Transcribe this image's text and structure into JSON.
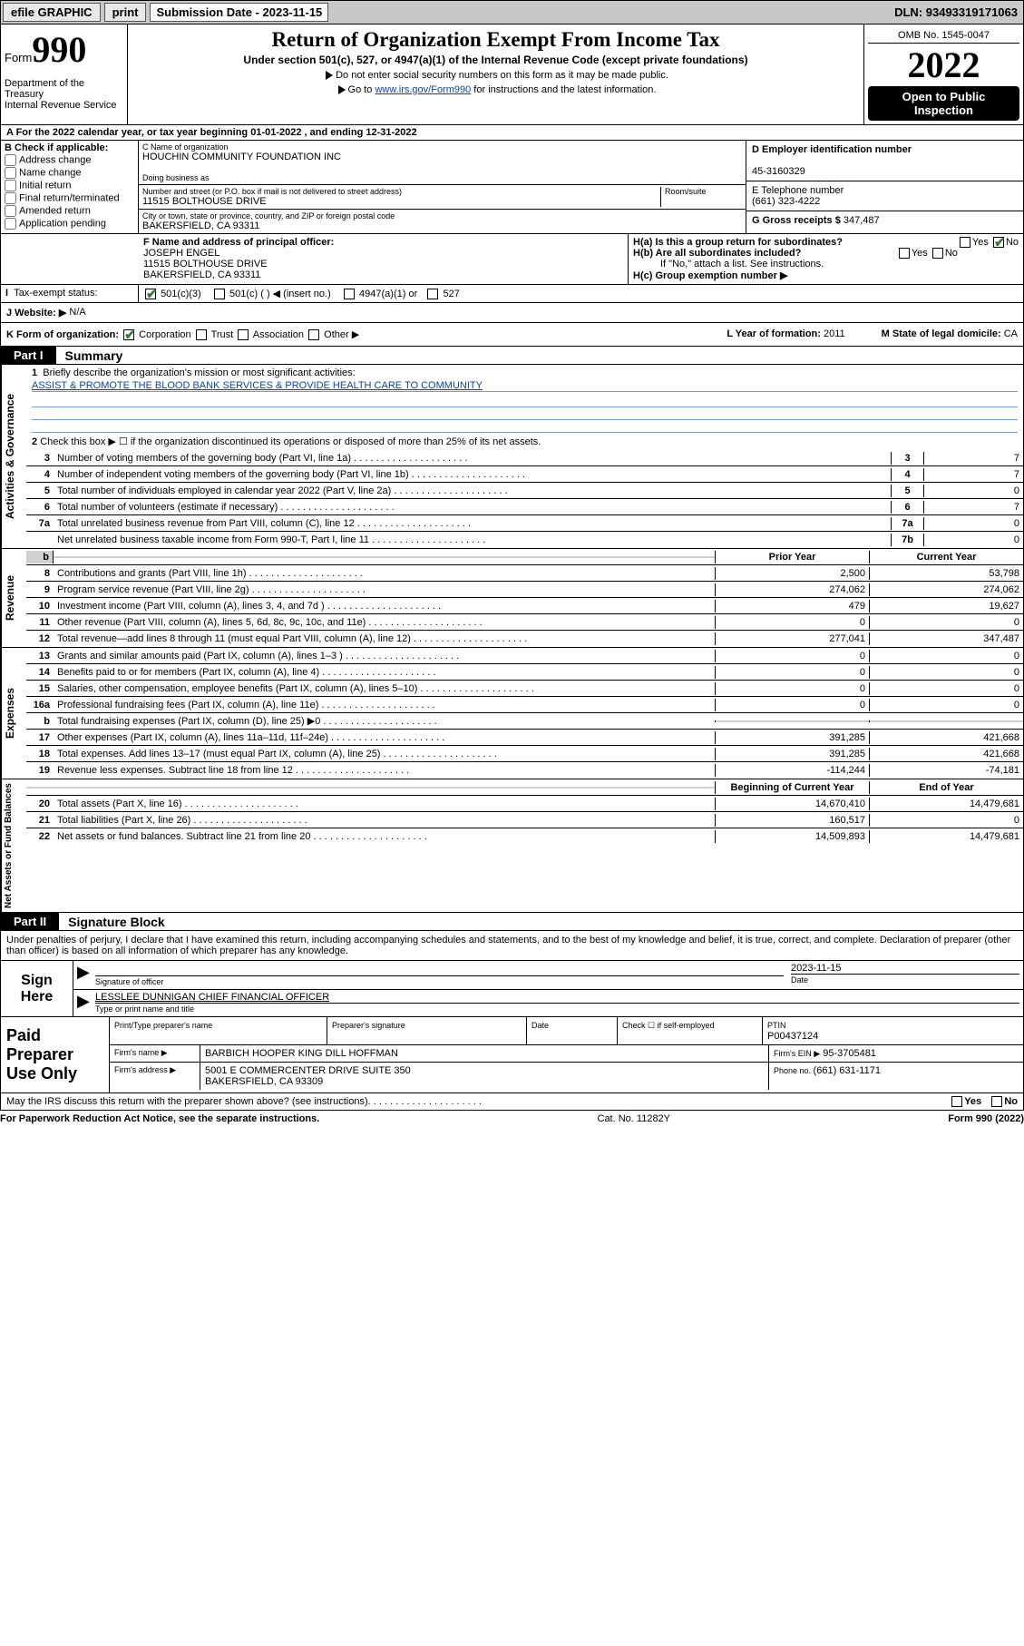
{
  "topbar": {
    "efile": "efile GRAPHIC",
    "print": "print",
    "subdate_lbl": "Submission Date - ",
    "subdate": "2023-11-15",
    "dln_lbl": "DLN: ",
    "dln": "93493319171063"
  },
  "header": {
    "form_word": "Form",
    "form_num": "990",
    "dept": "Department of the Treasury\nInternal Revenue Service",
    "title": "Return of Organization Exempt From Income Tax",
    "sub": "Under section 501(c), 527, or 4947(a)(1) of the Internal Revenue Code (except private foundations)",
    "note1": "Do not enter social security numbers on this form as it may be made public.",
    "note2_pre": "Go to ",
    "note2_link": "www.irs.gov/Form990",
    "note2_post": " for instructions and the latest information.",
    "omb": "OMB No. 1545-0047",
    "year": "2022",
    "open": "Open to Public Inspection"
  },
  "period": {
    "text": "A For the 2022 calendar year, or tax year beginning 01-01-2022        , and ending 12-31-2022"
  },
  "colB": {
    "hdr": "B Check if applicable:",
    "opts": [
      "Address change",
      "Name change",
      "Initial return",
      "Final return/terminated",
      "Amended return",
      "Application pending"
    ]
  },
  "colC": {
    "name_lbl": "C Name of organization",
    "name": "HOUCHIN COMMUNITY FOUNDATION INC",
    "dba_lbl": "Doing business as",
    "dba": "",
    "addr_lbl": "Number and street (or P.O. box if mail is not delivered to street address)",
    "room_lbl": "Room/suite",
    "addr": "11515 BOLTHOUSE DRIVE",
    "city_lbl": "City or town, state or province, country, and ZIP or foreign postal code",
    "city": "BAKERSFIELD, CA  93311"
  },
  "colD": {
    "ein_lbl": "D Employer identification number",
    "ein": "45-3160329",
    "tel_lbl": "E Telephone number",
    "tel": "(661) 323-4222",
    "gross_lbl": "G Gross receipts $",
    "gross": "347,487"
  },
  "rowF": {
    "lbl": "F  Name and address of principal officer:",
    "name": "JOSEPH ENGEL",
    "addr1": "11515 BOLTHOUSE DRIVE",
    "addr2": "BAKERSFIELD, CA  93311"
  },
  "rowH": {
    "a": "H(a)  Is this a group return for subordinates?",
    "b": "H(b)  Are all subordinates included?",
    "note": "If \"No,\" attach a list. See instructions.",
    "c": "H(c)  Group exemption number ▶",
    "yes": "Yes",
    "no": "No"
  },
  "rowI": {
    "lbl": "Tax-exempt status:",
    "o1": "501(c)(3)",
    "o2": "501(c) (  ) ◀ (insert no.)",
    "o3": "4947(a)(1) or",
    "o4": "527"
  },
  "rowJ": {
    "lbl": "J   Website: ▶",
    "val": "N/A"
  },
  "rowK": {
    "lbl": "K Form of organization:",
    "opts": [
      "Corporation",
      "Trust",
      "Association",
      "Other ▶"
    ],
    "yr_lbl": "L Year of formation: ",
    "yr": "2011",
    "st_lbl": "M State of legal domicile: ",
    "st": "CA"
  },
  "part1": {
    "tag": "Part I",
    "title": "Summary"
  },
  "briefly": {
    "num": "1",
    "txt": "Briefly describe the organization's mission or most significant activities:",
    "mission": "ASSIST & PROMOTE THE BLOOD BANK SERVICES & PROVIDE HEALTH CARE TO COMMUNITY"
  },
  "line2txt": "Check this box ▶ ☐  if the organization discontinued its operations or disposed of more than 25% of its net assets.",
  "govlines": [
    {
      "n": "3",
      "t": "Number of voting members of the governing body (Part VI, line 1a)",
      "b": "3",
      "v": "7"
    },
    {
      "n": "4",
      "t": "Number of independent voting members of the governing body (Part VI, line 1b)",
      "b": "4",
      "v": "7"
    },
    {
      "n": "5",
      "t": "Total number of individuals employed in calendar year 2022 (Part V, line 2a)",
      "b": "5",
      "v": "0"
    },
    {
      "n": "6",
      "t": "Total number of volunteers (estimate if necessary)",
      "b": "6",
      "v": "7"
    },
    {
      "n": "7a",
      "t": "Total unrelated business revenue from Part VIII, column (C), line 12",
      "b": "7a",
      "v": "0"
    },
    {
      "n": "",
      "t": "Net unrelated business taxable income from Form 990-T, Part I, line 11",
      "b": "7b",
      "v": "0"
    }
  ],
  "revhdr": {
    "py": "Prior Year",
    "cy": "Current Year"
  },
  "revlines": [
    {
      "n": "8",
      "t": "Contributions and grants (Part VIII, line 1h)",
      "p": "2,500",
      "c": "53,798"
    },
    {
      "n": "9",
      "t": "Program service revenue (Part VIII, line 2g)",
      "p": "274,062",
      "c": "274,062"
    },
    {
      "n": "10",
      "t": "Investment income (Part VIII, column (A), lines 3, 4, and 7d )",
      "p": "479",
      "c": "19,627"
    },
    {
      "n": "11",
      "t": "Other revenue (Part VIII, column (A), lines 5, 6d, 8c, 9c, 10c, and 11e)",
      "p": "0",
      "c": "0"
    },
    {
      "n": "12",
      "t": "Total revenue—add lines 8 through 11 (must equal Part VIII, column (A), line 12)",
      "p": "277,041",
      "c": "347,487"
    }
  ],
  "explines": [
    {
      "n": "13",
      "t": "Grants and similar amounts paid (Part IX, column (A), lines 1–3 )",
      "p": "0",
      "c": "0"
    },
    {
      "n": "14",
      "t": "Benefits paid to or for members (Part IX, column (A), line 4)",
      "p": "0",
      "c": "0"
    },
    {
      "n": "15",
      "t": "Salaries, other compensation, employee benefits (Part IX, column (A), lines 5–10)",
      "p": "0",
      "c": "0"
    },
    {
      "n": "16a",
      "t": "Professional fundraising fees (Part IX, column (A), line 11e)",
      "p": "0",
      "c": "0"
    },
    {
      "n": "b",
      "t": "Total fundraising expenses (Part IX, column (D), line 25) ▶0",
      "p": "",
      "c": "",
      "grey": true
    },
    {
      "n": "17",
      "t": "Other expenses (Part IX, column (A), lines 11a–11d, 11f–24e)",
      "p": "391,285",
      "c": "421,668"
    },
    {
      "n": "18",
      "t": "Total expenses. Add lines 13–17 (must equal Part IX, column (A), line 25)",
      "p": "391,285",
      "c": "421,668"
    },
    {
      "n": "19",
      "t": "Revenue less expenses. Subtract line 18 from line 12",
      "p": "-114,244",
      "c": "-74,181"
    }
  ],
  "nahdr": {
    "b": "Beginning of Current Year",
    "e": "End of Year"
  },
  "nalines": [
    {
      "n": "20",
      "t": "Total assets (Part X, line 16)",
      "p": "14,670,410",
      "c": "14,479,681"
    },
    {
      "n": "21",
      "t": "Total liabilities (Part X, line 26)",
      "p": "160,517",
      "c": "0"
    },
    {
      "n": "22",
      "t": "Net assets or fund balances. Subtract line 21 from line 20",
      "p": "14,509,893",
      "c": "14,479,681"
    }
  ],
  "part2": {
    "tag": "Part II",
    "title": "Signature Block"
  },
  "penalty": "Under penalties of perjury, I declare that I have examined this return, including accompanying schedules and statements, and to the best of my knowledge and belief, it is true, correct, and complete. Declaration of preparer (other than officer) is based on all information of which preparer has any knowledge.",
  "sign": {
    "here": "Sign Here",
    "sig_lbl": "Signature of officer",
    "date_lbl": "Date",
    "date": "2023-11-15",
    "name": "LESSLEE DUNNIGAN  CHIEF FINANCIAL OFFICER",
    "name_lbl": "Type or print name and title"
  },
  "paid": {
    "lbl": "Paid Preparer Use Only",
    "h1": "Print/Type preparer's name",
    "h2": "Preparer's signature",
    "h3": "Date",
    "h4": "Check ☐ if self-employed",
    "h5_lbl": "PTIN",
    "h5": "P00437124",
    "firm_lbl": "Firm's name      ▶",
    "firm": "BARBICH HOOPER KING DILL HOFFMAN",
    "ein_lbl": "Firm's EIN ▶",
    "ein": "95-3705481",
    "addr_lbl": "Firm's address ▶",
    "addr": "5001 E COMMERCENTER DRIVE SUITE 350\nBAKERSFIELD, CA  93309",
    "tel_lbl": "Phone no. ",
    "tel": "(661) 631-1171"
  },
  "mayirs": {
    "q": "May the IRS discuss this return with the preparer shown above? (see instructions)",
    "yes": "Yes",
    "no": "No"
  },
  "footer": {
    "l": "For Paperwork Reduction Act Notice, see the separate instructions.",
    "m": "Cat. No. 11282Y",
    "r": "Form 990 (2022)"
  },
  "vtabs": {
    "gov": "Activities & Governance",
    "rev": "Revenue",
    "exp": "Expenses",
    "na": "Net Assets or Fund Balances"
  }
}
